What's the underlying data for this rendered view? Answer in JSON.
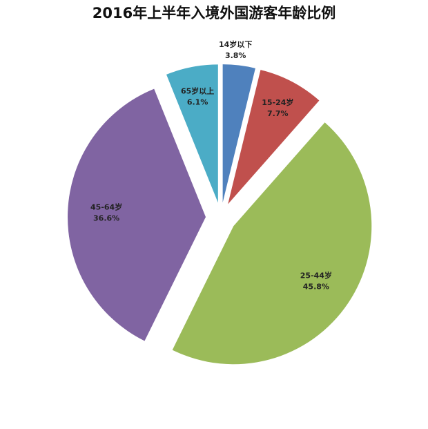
{
  "chart_data": {
    "type": "pie",
    "title": "2016年上半年入境外国游客年龄比例",
    "categories": [
      "14岁以下",
      "15-24岁",
      "25-44岁",
      "45-64岁",
      "65岁以上"
    ],
    "values": [
      3.8,
      7.7,
      45.8,
      36.6,
      6.1
    ],
    "value_labels": [
      "3.8%",
      "7.7%",
      "45.8%",
      "36.6%",
      "6.1%"
    ],
    "colors": [
      "#4f81bd",
      "#c0504d",
      "#9bbb59",
      "#8064a2",
      "#4bacc6"
    ],
    "exploded": true
  }
}
